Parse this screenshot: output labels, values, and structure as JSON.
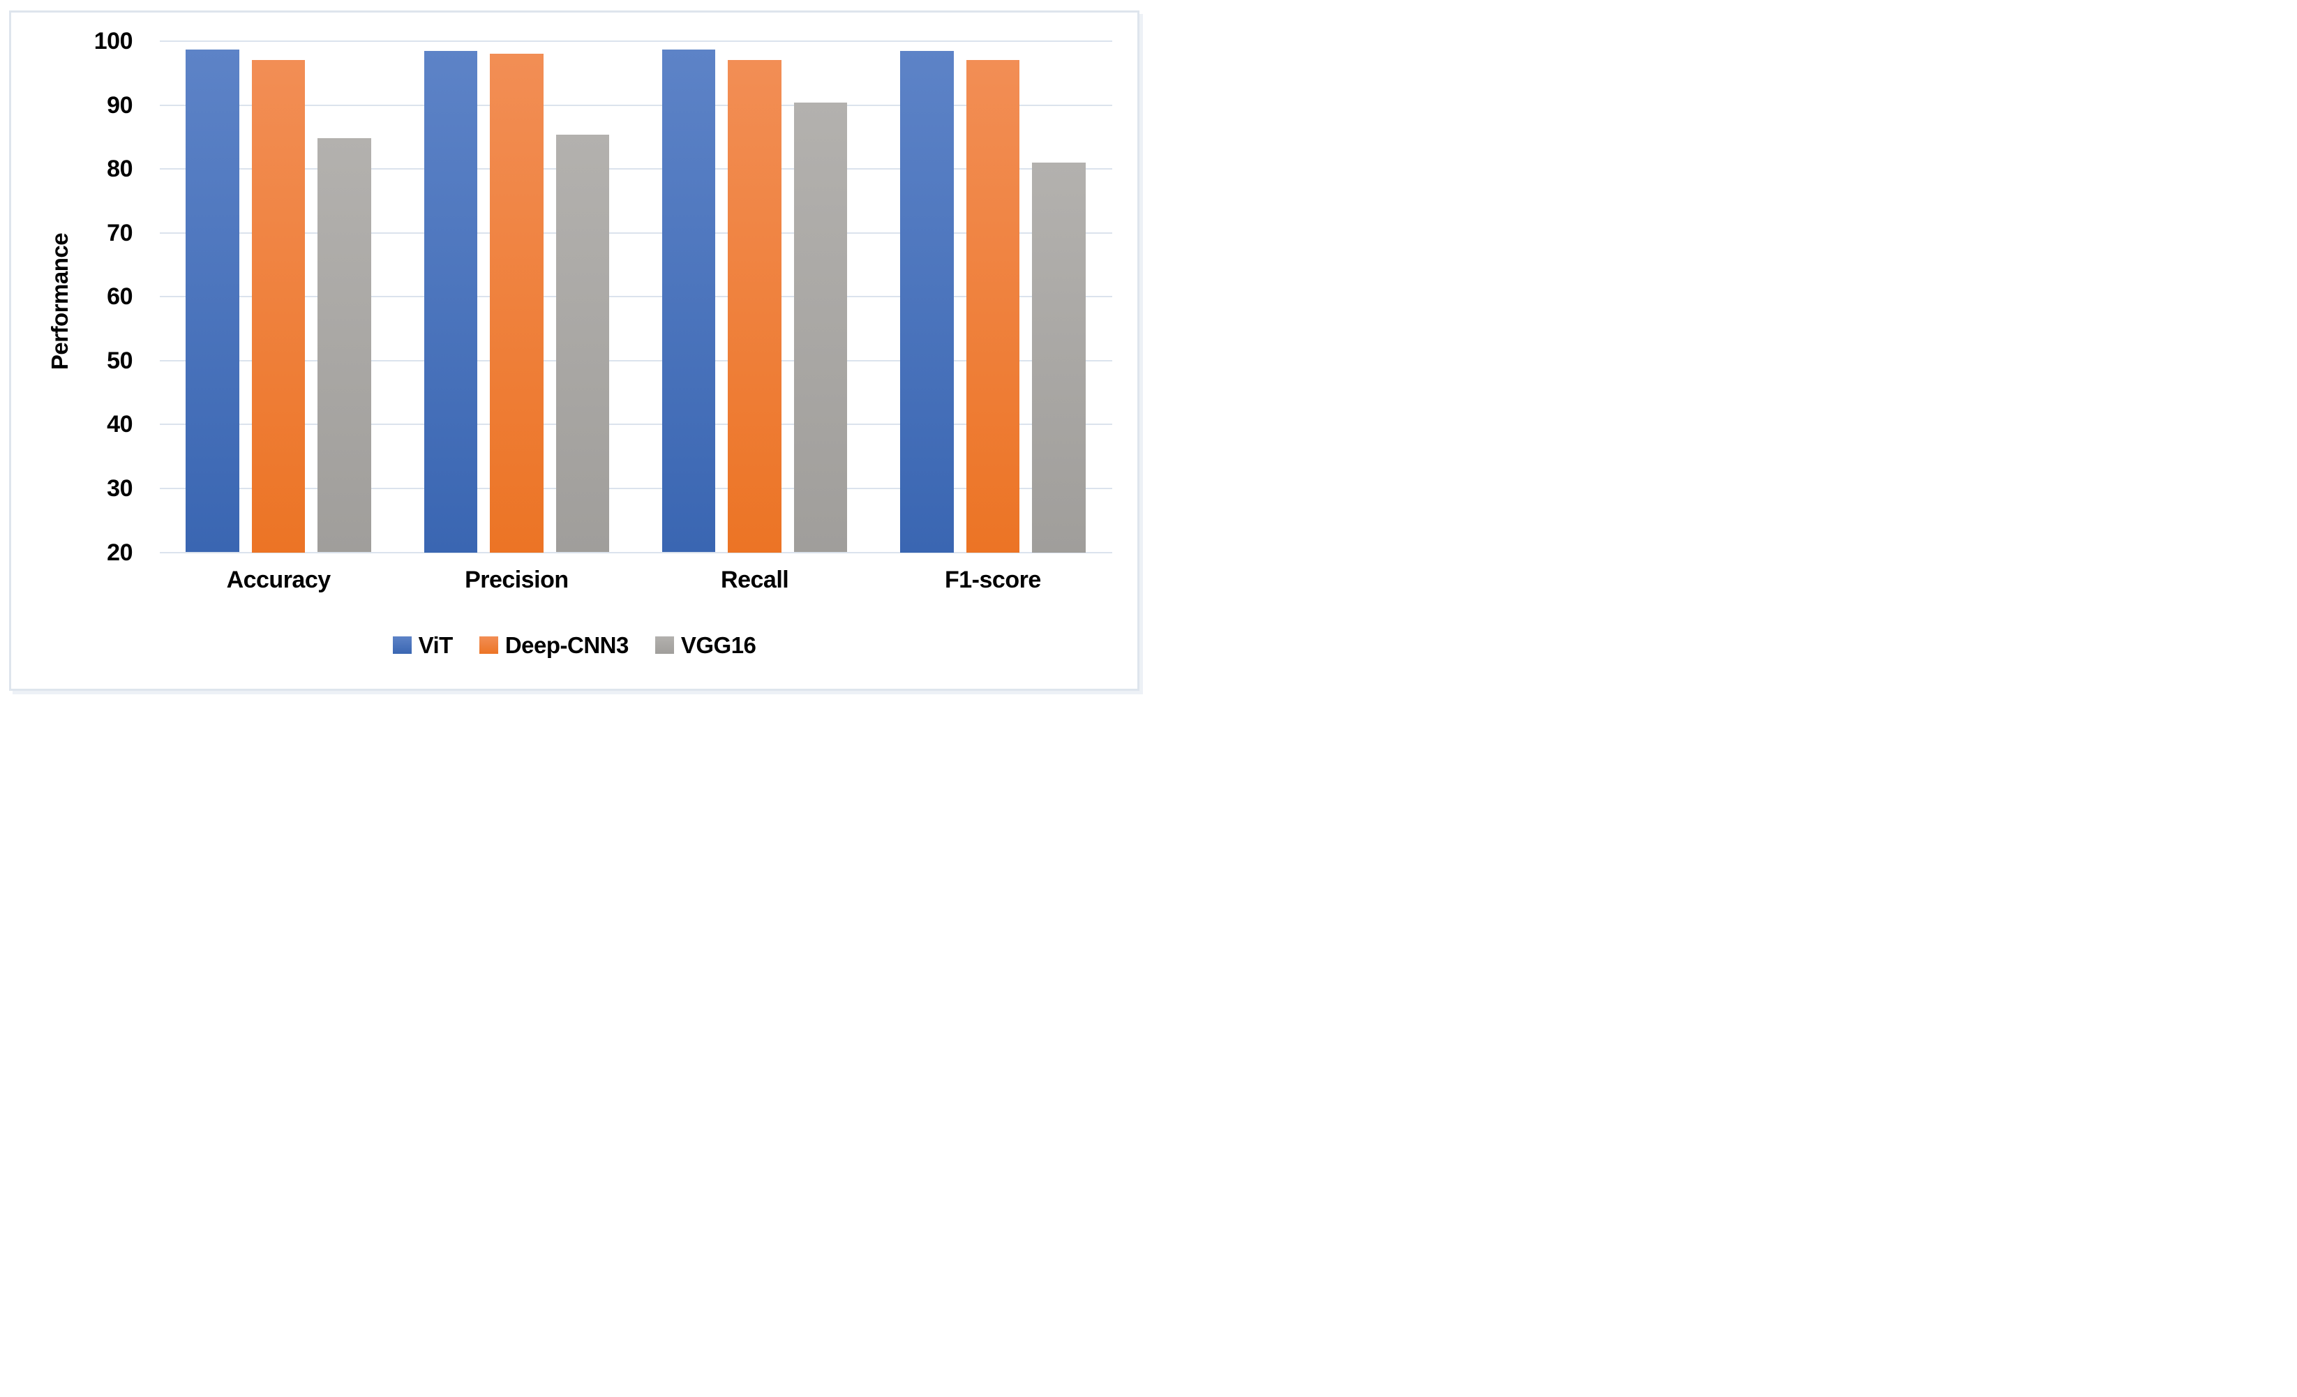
{
  "chart_data": {
    "type": "bar",
    "title": "",
    "categories": [
      "Accuracy",
      "Precision",
      "Recall",
      "F1-score"
    ],
    "series": [
      {
        "name": "ViT",
        "values": [
          98.7,
          98.5,
          98.7,
          98.5
        ],
        "color": "#4472c4",
        "gradient_top": "#5d83c7",
        "gradient_bottom": "#3a66b2"
      },
      {
        "name": "Deep-CNN3",
        "values": [
          97.0,
          98.0,
          97.0,
          97.0
        ],
        "color": "#ed7d31",
        "gradient_top": "#f28e55",
        "gradient_bottom": "#ec7425"
      },
      {
        "name": "VGG16",
        "values": [
          84.8,
          85.4,
          90.4,
          81.0
        ],
        "color": "#a5a5a5",
        "gradient_top": "#b3b1ae",
        "gradient_bottom": "#a09e9b"
      }
    ],
    "xlabel": "",
    "ylabel": "Performance",
    "yticks": [
      20,
      30,
      40,
      50,
      60,
      70,
      80,
      90,
      100
    ],
    "ylim": [
      20,
      100
    ],
    "grid": "horizontal",
    "gridline_color": "#dbe3ed",
    "legend_position": "bottom",
    "legend": [
      "ViT",
      "Deep-CNN3",
      "VGG16"
    ]
  }
}
